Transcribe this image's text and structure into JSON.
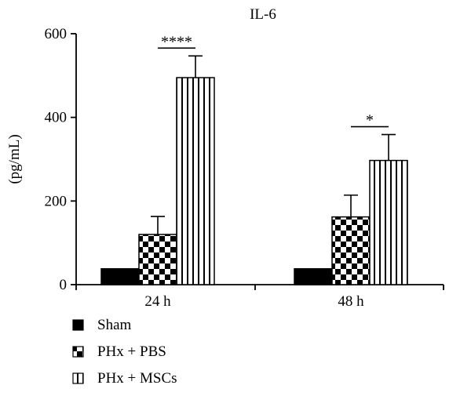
{
  "chart_data": {
    "type": "bar",
    "title": "IL-6",
    "ylabel": "(pg/mL)",
    "xlabel": "",
    "ylim": [
      0,
      600
    ],
    "yticks": [
      0,
      200,
      400,
      600
    ],
    "categories": [
      "24 h",
      "48 h"
    ],
    "series": [
      {
        "name": "Sham",
        "pattern": "solid",
        "values": [
          38,
          38
        ],
        "errors": [
          0,
          0
        ]
      },
      {
        "name": "PHx + PBS",
        "pattern": "checker",
        "values": [
          120,
          162
        ],
        "errors": [
          43,
          52
        ]
      },
      {
        "name": "PHx + MSCs",
        "pattern": "vstripe",
        "values": [
          495,
          297
        ],
        "errors": [
          52,
          62
        ]
      }
    ],
    "significance": [
      {
        "category": "24 h",
        "between": [
          "PHx + PBS",
          "PHx + MSCs"
        ],
        "label": "****"
      },
      {
        "category": "48 h",
        "between": [
          "PHx + PBS",
          "PHx + MSCs"
        ],
        "label": "*"
      }
    ],
    "legend_position": "bottom-left",
    "grid": false
  }
}
